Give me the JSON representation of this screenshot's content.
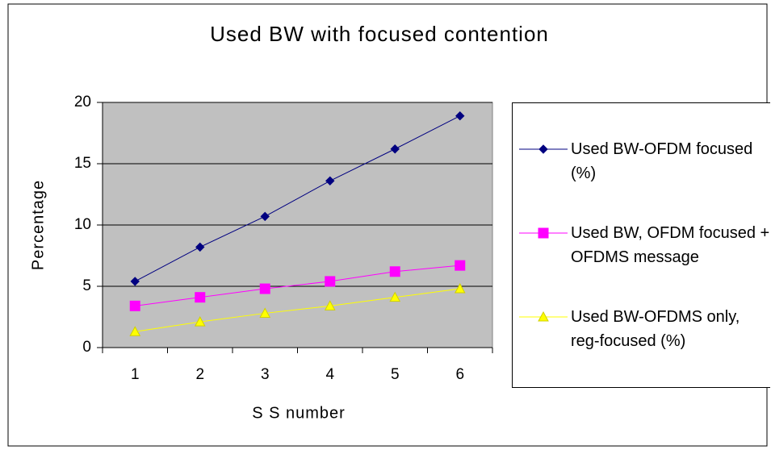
{
  "chart_data": {
    "type": "line",
    "title": "Used BW with focused contention",
    "x_label": "S S number",
    "y_label": "Percentage",
    "categories": [
      "1",
      "2",
      "3",
      "4",
      "5",
      "6"
    ],
    "series": [
      {
        "name": "Used BW-OFDM focused (%)",
        "color": "#000080",
        "marker": "diamond",
        "values": [
          5.4,
          8.2,
          10.7,
          13.6,
          16.2,
          18.9
        ]
      },
      {
        "name": "Used BW, OFDM focused + OFDMS message",
        "color": "#ff00ff",
        "marker": "square",
        "values": [
          3.4,
          4.1,
          4.8,
          5.4,
          6.2,
          6.7
        ]
      },
      {
        "name": "Used BW-OFDMS only, reg-focused (%)",
        "color": "#ffff00",
        "marker": "triangle",
        "values": [
          1.3,
          2.1,
          2.8,
          3.4,
          4.1,
          4.8
        ]
      }
    ],
    "ylim": [
      0,
      20
    ],
    "yticks": [
      0,
      5,
      10,
      15,
      20
    ],
    "grid": true,
    "plot_background": "#c0c0c0",
    "legend": "right"
  }
}
